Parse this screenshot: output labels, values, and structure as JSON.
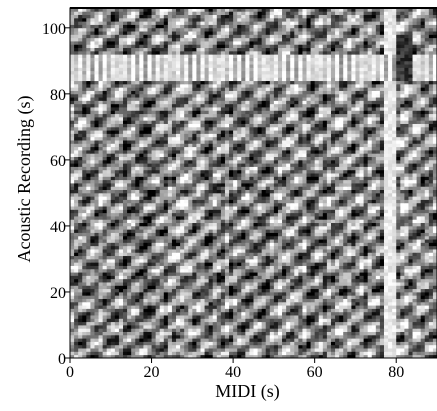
{
  "chart_data": {
    "type": "heatmap",
    "title": "",
    "xlabel": "MIDI (s)",
    "ylabel": "Acoustic Recording (s)",
    "xlim": [
      0,
      90
    ],
    "ylim": [
      0,
      106
    ],
    "x_ticks": [
      0,
      20,
      40,
      60,
      80
    ],
    "y_ticks": [
      0,
      20,
      40,
      60,
      80,
      100
    ],
    "colormap": "grayscale",
    "grid": false,
    "features": {
      "bright_vertical_band_x": [
        77,
        80
      ],
      "bright_horizontal_band_y": [
        84,
        92
      ],
      "dark_vertical_band_x": [
        80,
        84
      ],
      "dark_vertical_band_y": [
        84,
        98
      ]
    },
    "colors": {
      "low": "#000000",
      "high": "#ffffff",
      "axis": "#000000"
    }
  }
}
